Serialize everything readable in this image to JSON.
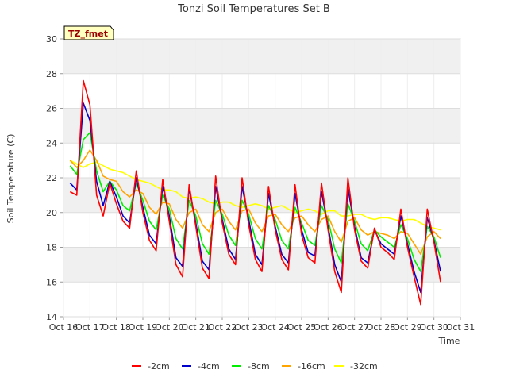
{
  "chart_data": {
    "type": "line",
    "title": "Tonzi Soil Temperatures Set B",
    "xlabel": "Time",
    "ylabel": "Soil Temperature (C)",
    "badge": "TZ_fmet",
    "xlim": [
      16,
      31
    ],
    "ylim": [
      14,
      30
    ],
    "x_ticks": [
      16,
      17,
      18,
      19,
      20,
      21,
      22,
      23,
      24,
      25,
      26,
      27,
      28,
      29,
      30,
      31
    ],
    "x_tick_labels": [
      "Oct 16",
      "Oct 17",
      "Oct 18",
      "Oct 19",
      "Oct 20",
      "Oct 21",
      "Oct 22",
      "Oct 23",
      "Oct 24",
      "Oct 25",
      "Oct 26",
      "Oct 27",
      "Oct 28",
      "Oct 29",
      "Oct 30",
      "Oct 31"
    ],
    "y_ticks": [
      14,
      16,
      18,
      20,
      22,
      24,
      26,
      28,
      30
    ],
    "y_tick_labels": [
      "14",
      "16",
      "18",
      "20",
      "22",
      "24",
      "26",
      "28",
      "30"
    ],
    "grid": true,
    "legend_position": "bottom",
    "x": [
      16.25,
      16.5,
      16.75,
      17.0,
      17.25,
      17.5,
      17.75,
      18.0,
      18.25,
      18.5,
      18.75,
      19.0,
      19.25,
      19.5,
      19.75,
      20.0,
      20.25,
      20.5,
      20.75,
      21.0,
      21.25,
      21.5,
      21.75,
      22.0,
      22.25,
      22.5,
      22.75,
      23.0,
      23.25,
      23.5,
      23.75,
      24.0,
      24.25,
      24.5,
      24.75,
      25.0,
      25.25,
      25.5,
      25.75,
      26.0,
      26.25,
      26.5,
      26.75,
      27.0,
      27.25,
      27.5,
      27.75,
      28.0,
      28.25,
      28.5,
      28.75,
      29.0,
      29.25,
      29.5,
      29.75,
      30.0,
      30.25
    ],
    "series": [
      {
        "name": "-2cm",
        "color": "#ff0000",
        "values": [
          21.2,
          21.0,
          27.6,
          26.2,
          21.0,
          19.8,
          21.7,
          20.5,
          19.5,
          19.1,
          22.4,
          20.0,
          18.4,
          17.8,
          21.9,
          19.5,
          17.0,
          16.3,
          21.6,
          19.2,
          16.8,
          16.2,
          22.1,
          19.4,
          17.6,
          17.0,
          22.0,
          19.3,
          17.3,
          16.6,
          21.5,
          19.0,
          17.3,
          16.7,
          21.6,
          18.7,
          17.4,
          17.1,
          21.7,
          19.0,
          16.6,
          15.4,
          22.0,
          19.0,
          17.2,
          16.8,
          19.1,
          18.0,
          17.7,
          17.3,
          20.2,
          18.0,
          16.3,
          14.7,
          20.2,
          18.3,
          16.0
        ]
      },
      {
        "name": "-4cm",
        "color": "#0000cc",
        "values": [
          21.7,
          21.3,
          26.3,
          25.3,
          21.8,
          20.4,
          21.8,
          20.9,
          19.8,
          19.4,
          22.0,
          20.3,
          18.7,
          18.2,
          21.5,
          19.8,
          17.4,
          16.9,
          21.4,
          19.4,
          17.2,
          16.7,
          21.5,
          19.6,
          17.9,
          17.3,
          21.5,
          19.6,
          17.6,
          17.0,
          21.1,
          19.2,
          17.6,
          17.1,
          21.1,
          19.0,
          17.7,
          17.5,
          21.2,
          19.2,
          17.0,
          16.0,
          21.4,
          19.2,
          17.4,
          17.1,
          19.0,
          18.2,
          17.9,
          17.6,
          19.8,
          18.2,
          16.6,
          15.4,
          19.7,
          18.4,
          16.6
        ]
      },
      {
        "name": "-8cm",
        "color": "#00ee00",
        "values": [
          22.7,
          22.2,
          24.2,
          24.6,
          22.4,
          21.2,
          21.8,
          21.3,
          20.4,
          20.1,
          21.7,
          20.7,
          19.5,
          19.0,
          21.0,
          20.2,
          18.5,
          17.9,
          20.7,
          19.8,
          18.2,
          17.6,
          20.7,
          19.9,
          18.7,
          18.1,
          20.7,
          19.9,
          18.5,
          17.9,
          20.4,
          19.6,
          18.4,
          17.9,
          20.3,
          19.4,
          18.4,
          18.1,
          20.4,
          19.6,
          17.9,
          17.1,
          20.5,
          19.5,
          18.2,
          17.8,
          19.0,
          18.6,
          18.3,
          18.0,
          19.3,
          18.5,
          17.3,
          16.6,
          19.2,
          18.6,
          17.4
        ]
      },
      {
        "name": "-16cm",
        "color": "#ffa500",
        "values": [
          23.0,
          22.6,
          23.0,
          23.6,
          23.0,
          22.1,
          21.9,
          21.8,
          21.2,
          20.9,
          21.3,
          21.1,
          20.3,
          19.9,
          20.6,
          20.5,
          19.6,
          19.1,
          20.0,
          20.2,
          19.3,
          18.9,
          20.0,
          20.2,
          19.5,
          19.0,
          20.1,
          20.2,
          19.4,
          18.9,
          19.8,
          19.9,
          19.3,
          18.9,
          19.7,
          19.8,
          19.3,
          18.9,
          19.6,
          19.8,
          18.9,
          18.3,
          19.5,
          19.7,
          19.0,
          18.7,
          18.9,
          18.8,
          18.7,
          18.5,
          18.9,
          18.8,
          18.2,
          17.6,
          18.6,
          18.9,
          18.5
        ]
      },
      {
        "name": "-32cm",
        "color": "#ffff00",
        "values": [
          23.0,
          22.8,
          22.6,
          22.8,
          22.9,
          22.7,
          22.5,
          22.4,
          22.3,
          22.1,
          21.9,
          21.8,
          21.7,
          21.5,
          21.3,
          21.3,
          21.2,
          20.9,
          20.8,
          20.9,
          20.8,
          20.6,
          20.5,
          20.6,
          20.6,
          20.4,
          20.3,
          20.4,
          20.5,
          20.4,
          20.2,
          20.3,
          20.4,
          20.2,
          20.0,
          20.1,
          20.2,
          20.1,
          19.9,
          20.1,
          20.1,
          19.8,
          19.8,
          19.9,
          19.9,
          19.7,
          19.6,
          19.7,
          19.7,
          19.6,
          19.5,
          19.6,
          19.6,
          19.4,
          19.2,
          19.1,
          19.0
        ]
      }
    ]
  }
}
